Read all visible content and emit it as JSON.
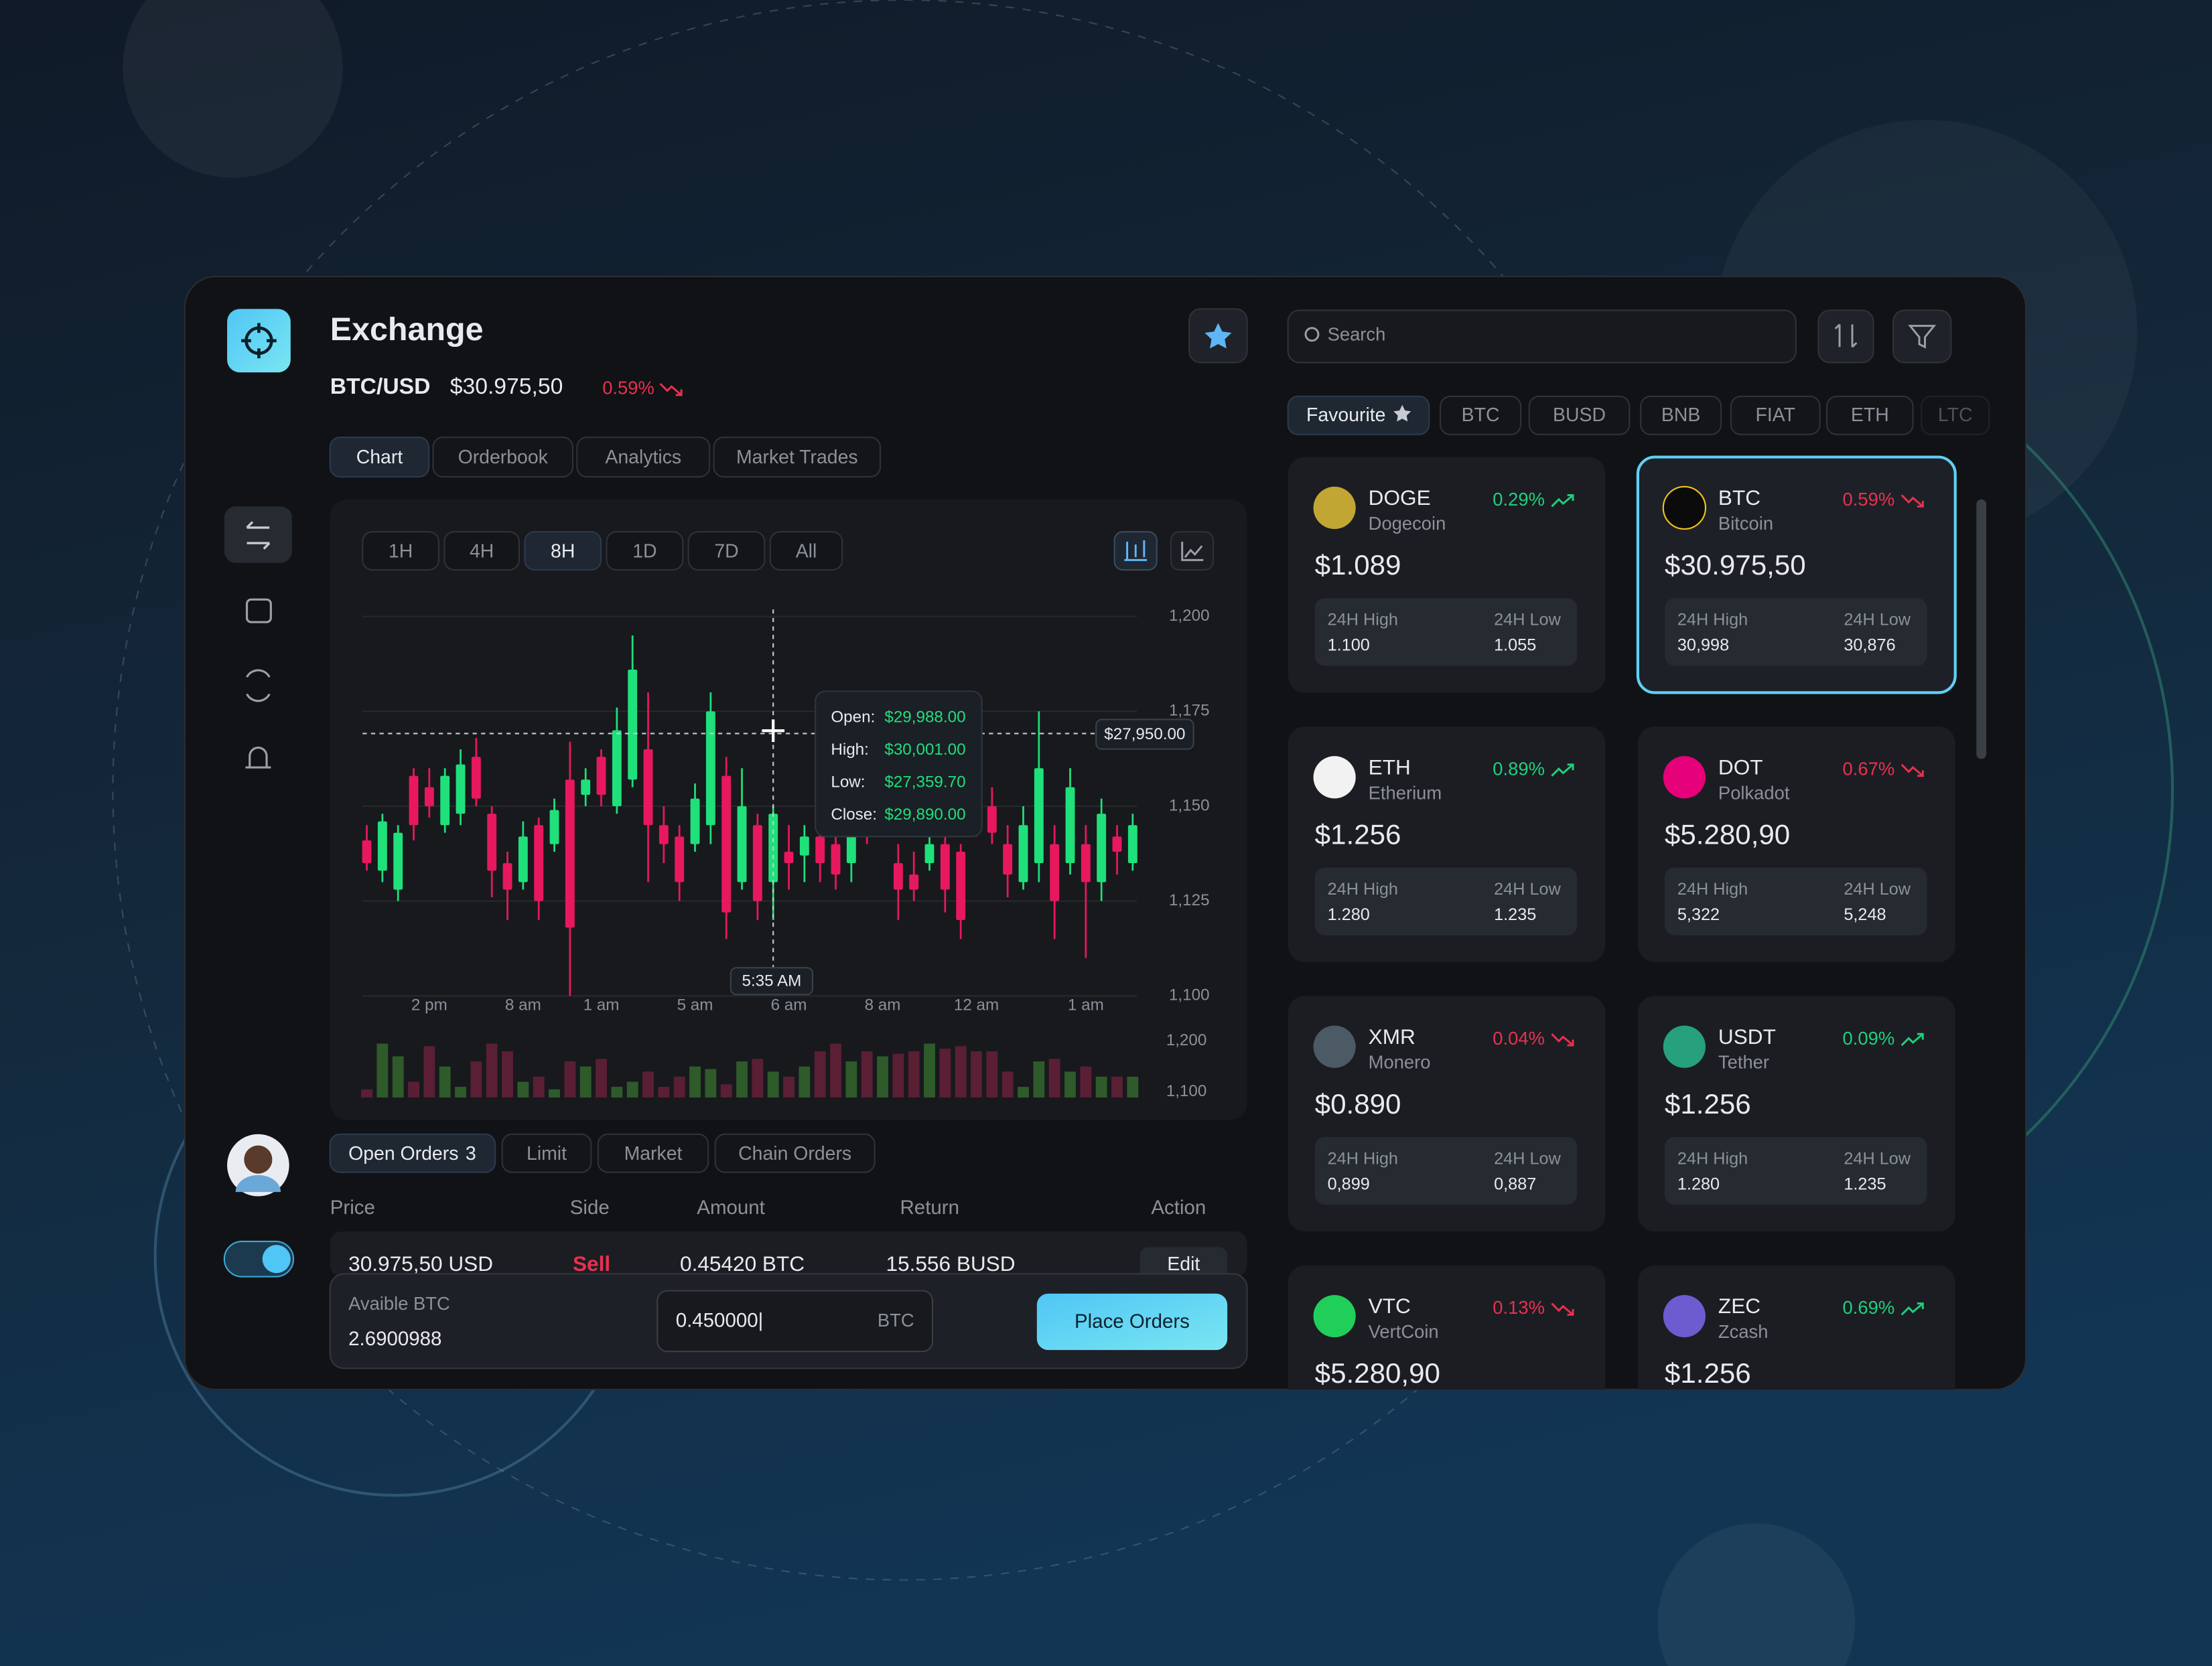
{
  "header": {
    "title": "Exchange",
    "pair": "BTC/USD",
    "price": "$30.975,50",
    "change": "0.59%",
    "change_color": "#e8314f"
  },
  "chart_tabs": [
    "Chart",
    "Orderbook",
    "Analytics",
    "Market Trades"
  ],
  "ranges": [
    "1H",
    "4H",
    "8H",
    "1D",
    "7D",
    "All"
  ],
  "chart_data": {
    "type": "candlestick",
    "up_color": "#1fe07a",
    "down_color": "#e8185e",
    "grid": true,
    "categories": [
      null,
      null,
      null,
      null,
      "2 pm",
      null,
      null,
      null,
      null,
      null,
      "8 am",
      null,
      null,
      null,
      null,
      "1 am",
      null,
      null,
      null,
      null,
      null,
      "5 am",
      null,
      null,
      null,
      null,
      null,
      "6 am",
      null,
      null,
      null,
      null,
      null,
      "8 am",
      null,
      null,
      null,
      null,
      null,
      "12 am",
      null,
      null,
      null,
      null,
      null,
      null,
      "1 am",
      null,
      null,
      null
    ],
    "open": [
      1141,
      1133,
      1128,
      1158,
      1155,
      1145,
      1148,
      1163,
      1148,
      1135,
      1130,
      1145,
      1140,
      1157,
      1153,
      1163,
      1150,
      1157,
      1165,
      1145,
      1142,
      1140,
      1145,
      1158,
      1130,
      1145,
      1130,
      1138,
      1137,
      1142,
      1140,
      1135,
      1158,
      1150,
      1135,
      1132,
      1135,
      1140,
      1138,
      1168,
      1150,
      1140,
      1130,
      1135,
      1140,
      1135,
      1140,
      1130,
      1142,
      1135
    ],
    "high": [
      1145,
      1148,
      1145,
      1160,
      1160,
      1160,
      1165,
      1168,
      1150,
      1138,
      1146,
      1147,
      1152,
      1167,
      1160,
      1165,
      1176,
      1195,
      1180,
      1150,
      1145,
      1156,
      1180,
      1163,
      1160,
      1148,
      1150,
      1145,
      1145,
      1148,
      1150,
      1146,
      1165,
      1162,
      1140,
      1138,
      1146,
      1145,
      1140,
      1175,
      1155,
      1145,
      1150,
      1175,
      1145,
      1160,
      1145,
      1152,
      1145,
      1148
    ],
    "low": [
      1133,
      1130,
      1125,
      1141,
      1147,
      1143,
      1145,
      1150,
      1126,
      1120,
      1128,
      1120,
      1138,
      1100,
      1150,
      1150,
      1148,
      1155,
      1130,
      1135,
      1125,
      1138,
      1140,
      1115,
      1128,
      1120,
      1120,
      1128,
      1130,
      1130,
      1128,
      1130,
      1140,
      1145,
      1120,
      1125,
      1133,
      1122,
      1115,
      1142,
      1140,
      1126,
      1128,
      1130,
      1115,
      1132,
      1110,
      1125,
      1132,
      1133
    ],
    "close": [
      1135,
      1146,
      1143,
      1145,
      1150,
      1158,
      1161,
      1152,
      1133,
      1128,
      1142,
      1125,
      1149,
      1118,
      1157,
      1153,
      1170,
      1186,
      1145,
      1140,
      1130,
      1152,
      1175,
      1122,
      1150,
      1125,
      1148,
      1135,
      1142,
      1135,
      1132,
      1143,
      1145,
      1155,
      1128,
      1128,
      1140,
      1128,
      1120,
      1145,
      1143,
      1132,
      1145,
      1160,
      1125,
      1155,
      1130,
      1148,
      1138,
      1145
    ],
    "ylim": [
      1100,
      1200
    ],
    "yticks": [
      {
        "value": 1200,
        "label": "1,200"
      },
      {
        "value": 1175,
        "label": "1,175"
      },
      {
        "value": 1150,
        "label": "1,150"
      },
      {
        "value": 1125,
        "label": "1,125"
      },
      {
        "value": 1100,
        "label": "1,100"
      }
    ],
    "volume": {
      "values": [
        1105,
        1195,
        1170,
        1120,
        1190,
        1150,
        1110,
        1160,
        1195,
        1180,
        1120,
        1130,
        1105,
        1160,
        1150,
        1165,
        1110,
        1120,
        1140,
        1110,
        1130,
        1150,
        1145,
        1115,
        1160,
        1165,
        1140,
        1130,
        1150,
        1180,
        1195,
        1160,
        1180,
        1170,
        1175,
        1180,
        1195,
        1185,
        1190,
        1180,
        1180,
        1140,
        1110,
        1160,
        1165,
        1140,
        1150,
        1130,
        1130,
        1130
      ],
      "ylim": [
        1089,
        1215
      ],
      "yticks": [
        {
          "value": 1200,
          "label": "1,200"
        },
        {
          "value": 1100,
          "label": "1,100"
        }
      ]
    },
    "crosshair": {
      "time": "5:35 AM",
      "price": "$27,950.00"
    },
    "tooltip": [
      {
        "label": "Open:",
        "value": "$29,988.00"
      },
      {
        "label": "High:",
        "value": "$30,001.00"
      },
      {
        "label": "Low:",
        "value": "$27,359.70"
      },
      {
        "label": "Close:",
        "value": "$29,890.00"
      }
    ]
  },
  "order_tabs": [
    {
      "label": "Open Orders",
      "count": "3"
    },
    {
      "label": "Limit"
    },
    {
      "label": "Market"
    },
    {
      "label": "Chain Orders"
    }
  ],
  "orders_table": {
    "columns": [
      "Price",
      "Side",
      "Amount",
      "Return",
      "Action"
    ],
    "rows": [
      [
        "30.975,50 USD",
        "Sell",
        "0.45420 BTC",
        "15.556 BUSD",
        "Edit"
      ]
    ]
  },
  "order_form": {
    "available_label": "Avaible BTC",
    "available": "2.6900988",
    "amount": "0.450000|",
    "unit": "BTC",
    "button": "Place Orders"
  },
  "market": {
    "search": "Search",
    "filters": [
      "Favourite",
      "BTC",
      "BUSD",
      "BNB",
      "FIAT",
      "ETH",
      "LTC"
    ],
    "labels": {
      "high": "24H High",
      "low": "24H Low"
    },
    "coins": [
      {
        "symbol": "DOGE",
        "name": "Dogecoin",
        "change": "0.29%",
        "change_color": "#1fcf7c",
        "price": "$1.089",
        "high": "1.100",
        "low": "1.055",
        "icon": "#c2a633"
      },
      {
        "symbol": "BTC",
        "name": "Bitcoin",
        "change": "0.59%",
        "change_color": "#e8314f",
        "price": "$30.975,50",
        "high": "30,998",
        "low": "30,876",
        "icon": "#0b0b0b",
        "selected": true
      },
      {
        "symbol": "ETH",
        "name": "Etherium",
        "change": "0.89%",
        "change_color": "#1fcf7c",
        "price": "$1.256",
        "high": "1.280",
        "low": "1.235",
        "icon": "#f2f2f2"
      },
      {
        "symbol": "DOT",
        "name": "Polkadot",
        "change": "0.67%",
        "change_color": "#e8314f",
        "price": "$5.280,90",
        "high": "5,322",
        "low": "5,248",
        "icon": "#e6007a"
      },
      {
        "symbol": "XMR",
        "name": "Monero",
        "change": "0.04%",
        "change_color": "#e8314f",
        "price": "$0.890",
        "high": "0,899",
        "low": "0,887",
        "icon": "#4c5a66"
      },
      {
        "symbol": "USDT",
        "name": "Tether",
        "change": "0.09%",
        "change_color": "#1fcf7c",
        "price": "$1.256",
        "high": "1.280",
        "low": "1.235",
        "icon": "#26a17b"
      },
      {
        "symbol": "VTC",
        "name": "VertCoin",
        "change": "0.13%",
        "change_color": "#e8314f",
        "price": "$5.280,90",
        "icon": "#1fcf5a"
      },
      {
        "symbol": "ZEC",
        "name": "Zcash",
        "change": "0.69%",
        "change_color": "#1fcf7c",
        "price": "$1.256",
        "icon": "#6d5bd0"
      }
    ]
  }
}
